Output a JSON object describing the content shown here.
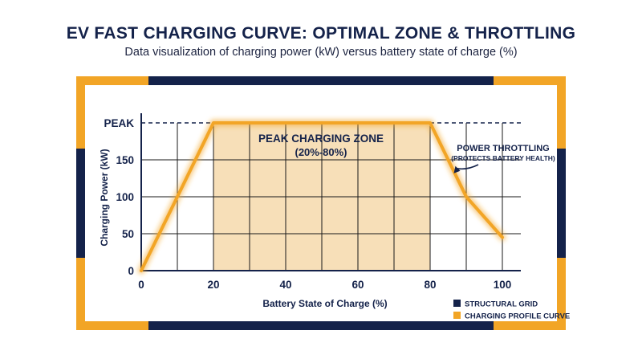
{
  "page": {
    "title": "EV FAST CHARGING CURVE: OPTIMAL ZONE & THROTTLING",
    "subtitle": "Data visualization of charging power (kW) versus battery state of charge (%)"
  },
  "colors": {
    "navy": "#14224a",
    "orange": "#f2a526",
    "zone_fill": "#f7dfb8",
    "grid": "#1a1a1a"
  },
  "chart_data": {
    "type": "line",
    "xlabel": "Battery State of Charge (%)",
    "ylabel": "Charging Power (kW)",
    "xlim": [
      0,
      100
    ],
    "ylim": [
      0,
      200
    ],
    "x_ticks": [
      0,
      20,
      40,
      60,
      80,
      100
    ],
    "x_tick_labels": [
      "0",
      "20",
      "40",
      "60",
      "80",
      "100"
    ],
    "y_ticks": [
      0,
      50,
      100,
      150,
      200
    ],
    "y_tick_labels": [
      "0",
      "50",
      "100",
      "150",
      "PEAK"
    ],
    "grid": true,
    "grid_step_x": 10,
    "grid_step_y": 50,
    "series": [
      {
        "x": [
          0,
          10,
          20,
          80,
          85,
          90,
          100
        ],
        "y": [
          0,
          100,
          200,
          200,
          150,
          100,
          45
        ]
      }
    ],
    "peak_line_y": 200,
    "zone": {
      "x_range": [
        20,
        80
      ],
      "label_line1": "PEAK CHARGING ZONE",
      "label_line2": "(20%-80%)"
    },
    "annotation": {
      "line1": "POWER THROTTLING",
      "line2": "(PROTECTS BATTERY HEALTH)",
      "target": [
        87,
        135
      ]
    },
    "legend": {
      "placement": "bottom-right",
      "items": [
        {
          "label": "STRUCTURAL GRID",
          "color": "#14224a"
        },
        {
          "label": "CHARGING PROFILE CURVE",
          "color": "#f2a526"
        }
      ]
    }
  }
}
